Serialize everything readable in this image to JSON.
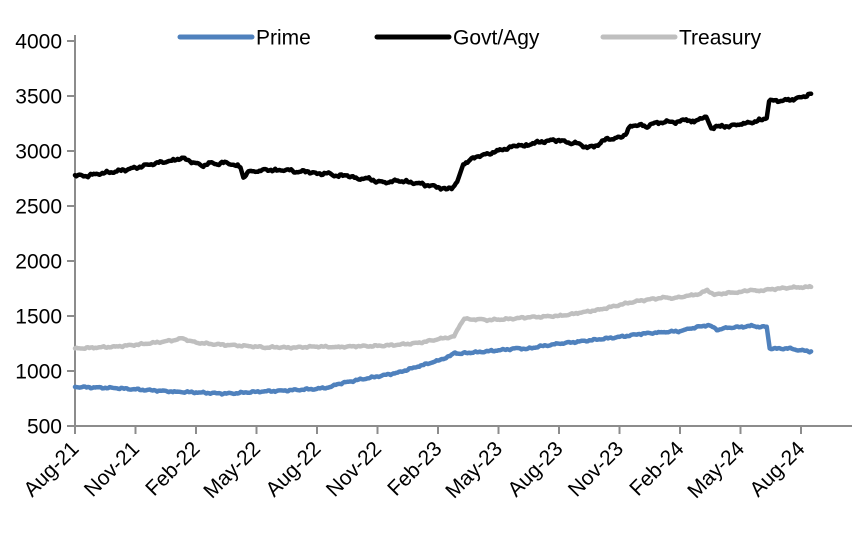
{
  "chart_data": {
    "type": "line",
    "title": "",
    "xlabel": "",
    "ylabel": "",
    "grid": false,
    "legend_position": "top",
    "x_unit": "months since Aug-2021",
    "x_range_months": [
      0,
      36.5
    ],
    "ylim": [
      500,
      4000
    ],
    "y_ticks": [
      4000,
      3500,
      3000,
      2500,
      2000,
      1500,
      1000,
      500
    ],
    "x_tick_labels": [
      "Aug-21",
      "Nov-21",
      "Feb-22",
      "May-22",
      "Aug-22",
      "Nov-22",
      "Feb-23",
      "May-23",
      "Aug-23",
      "Nov-23",
      "Feb-24",
      "May-24",
      "Aug-24"
    ],
    "axis_color": "#8c8c8c",
    "series": [
      {
        "name": "Prime",
        "color": "#4f81bd",
        "points": [
          [
            0,
            855
          ],
          [
            1,
            850
          ],
          [
            2,
            845
          ],
          [
            3,
            833
          ],
          [
            4,
            822
          ],
          [
            5,
            812
          ],
          [
            6,
            805
          ],
          [
            7,
            798
          ],
          [
            7.5,
            795
          ],
          [
            8,
            798
          ],
          [
            8.5,
            805
          ],
          [
            9,
            812
          ],
          [
            9.5,
            816
          ],
          [
            10,
            818
          ],
          [
            11,
            828
          ],
          [
            12,
            838
          ],
          [
            12.7,
            855
          ],
          [
            13,
            880
          ],
          [
            14,
            918
          ],
          [
            15,
            950
          ],
          [
            16,
            985
          ],
          [
            17,
            1040
          ],
          [
            18,
            1095
          ],
          [
            18.6,
            1135
          ],
          [
            18.85,
            1168
          ],
          [
            19.1,
            1155
          ],
          [
            19.4,
            1165
          ],
          [
            20,
            1172
          ],
          [
            21,
            1188
          ],
          [
            22,
            1208
          ],
          [
            22.4,
            1200
          ],
          [
            23,
            1222
          ],
          [
            24,
            1248
          ],
          [
            25,
            1268
          ],
          [
            26,
            1288
          ],
          [
            27,
            1310
          ],
          [
            28,
            1336
          ],
          [
            29,
            1352
          ],
          [
            30,
            1362
          ],
          [
            30.5,
            1385
          ],
          [
            31,
            1405
          ],
          [
            31.4,
            1418
          ],
          [
            31.9,
            1372
          ],
          [
            32.2,
            1392
          ],
          [
            33,
            1400
          ],
          [
            33.6,
            1412
          ],
          [
            34,
            1398
          ],
          [
            34.3,
            1403
          ],
          [
            34.45,
            1205
          ],
          [
            35,
            1202
          ],
          [
            35.4,
            1208
          ],
          [
            35.7,
            1195
          ],
          [
            36,
            1188
          ],
          [
            36.5,
            1178
          ]
        ]
      },
      {
        "name": "Govt/Agy",
        "color": "#000000",
        "points": [
          [
            0,
            2780
          ],
          [
            0.5,
            2772
          ],
          [
            1,
            2790
          ],
          [
            2,
            2812
          ],
          [
            3,
            2848
          ],
          [
            4,
            2890
          ],
          [
            4.8,
            2912
          ],
          [
            5.3,
            2938
          ],
          [
            5.7,
            2905
          ],
          [
            6,
            2890
          ],
          [
            6.3,
            2862
          ],
          [
            6.7,
            2895
          ],
          [
            7,
            2880
          ],
          [
            7.5,
            2898
          ],
          [
            8,
            2865
          ],
          [
            8.2,
            2852
          ],
          [
            8.35,
            2758
          ],
          [
            8.6,
            2815
          ],
          [
            9,
            2812
          ],
          [
            9.5,
            2832
          ],
          [
            10,
            2822
          ],
          [
            10.5,
            2832
          ],
          [
            11,
            2808
          ],
          [
            11.5,
            2816
          ],
          [
            12,
            2792
          ],
          [
            12.5,
            2798
          ],
          [
            13,
            2772
          ],
          [
            13.5,
            2778
          ],
          [
            14,
            2748
          ],
          [
            14.5,
            2753
          ],
          [
            15,
            2722
          ],
          [
            15.5,
            2712
          ],
          [
            16,
            2732
          ],
          [
            16.5,
            2718
          ],
          [
            17,
            2708
          ],
          [
            17.5,
            2688
          ],
          [
            18,
            2672
          ],
          [
            18.4,
            2652
          ],
          [
            18.75,
            2672
          ],
          [
            18.95,
            2720
          ],
          [
            19.25,
            2878
          ],
          [
            19.6,
            2922
          ],
          [
            20,
            2952
          ],
          [
            20.5,
            2975
          ],
          [
            21,
            3005
          ],
          [
            21.5,
            3028
          ],
          [
            22,
            3055
          ],
          [
            22.3,
            3042
          ],
          [
            22.7,
            3072
          ],
          [
            23,
            3078
          ],
          [
            23.5,
            3095
          ],
          [
            24,
            3100
          ],
          [
            24.4,
            3076
          ],
          [
            25,
            3068
          ],
          [
            25.4,
            3028
          ],
          [
            25.8,
            3048
          ],
          [
            26,
            3062
          ],
          [
            26.4,
            3118
          ],
          [
            26.7,
            3105
          ],
          [
            27,
            3128
          ],
          [
            27.3,
            3148
          ],
          [
            27.55,
            3228
          ],
          [
            27.8,
            3232
          ],
          [
            28,
            3242
          ],
          [
            28.3,
            3218
          ],
          [
            28.6,
            3248
          ],
          [
            29,
            3255
          ],
          [
            29.4,
            3272
          ],
          [
            29.7,
            3258
          ],
          [
            30,
            3268
          ],
          [
            30.3,
            3288
          ],
          [
            30.7,
            3262
          ],
          [
            31,
            3298
          ],
          [
            31.3,
            3312
          ],
          [
            31.55,
            3205
          ],
          [
            31.8,
            3228
          ],
          [
            32,
            3222
          ],
          [
            32.5,
            3228
          ],
          [
            33,
            3242
          ],
          [
            33.5,
            3258
          ],
          [
            34,
            3282
          ],
          [
            34.3,
            3298
          ],
          [
            34.42,
            3452
          ],
          [
            34.7,
            3462
          ],
          [
            35,
            3455
          ],
          [
            35.3,
            3465
          ],
          [
            35.7,
            3472
          ],
          [
            36,
            3488
          ],
          [
            36.5,
            3520
          ]
        ]
      },
      {
        "name": "Treasury",
        "color": "#bfbfbf",
        "points": [
          [
            0,
            1205
          ],
          [
            1,
            1212
          ],
          [
            2,
            1222
          ],
          [
            3,
            1238
          ],
          [
            4,
            1258
          ],
          [
            5,
            1282
          ],
          [
            5.3,
            1298
          ],
          [
            5.7,
            1275
          ],
          [
            6,
            1258
          ],
          [
            7,
            1242
          ],
          [
            8,
            1232
          ],
          [
            9,
            1222
          ],
          [
            9.5,
            1212
          ],
          [
            10,
            1218
          ],
          [
            10.5,
            1212
          ],
          [
            11,
            1215
          ],
          [
            12,
            1222
          ],
          [
            13,
            1218
          ],
          [
            14,
            1225
          ],
          [
            15,
            1228
          ],
          [
            16,
            1238
          ],
          [
            17,
            1255
          ],
          [
            18,
            1288
          ],
          [
            18.8,
            1315
          ],
          [
            19.1,
            1420
          ],
          [
            19.3,
            1475
          ],
          [
            19.6,
            1468
          ],
          [
            20,
            1472
          ],
          [
            20.5,
            1462
          ],
          [
            21,
            1468
          ],
          [
            21.5,
            1472
          ],
          [
            22,
            1482
          ],
          [
            22.5,
            1488
          ],
          [
            23,
            1492
          ],
          [
            24,
            1502
          ],
          [
            24.5,
            1512
          ],
          [
            25,
            1528
          ],
          [
            26,
            1558
          ],
          [
            27,
            1600
          ],
          [
            27.5,
            1622
          ],
          [
            28,
            1638
          ],
          [
            28.5,
            1652
          ],
          [
            29,
            1662
          ],
          [
            29.3,
            1668
          ],
          [
            29.7,
            1662
          ],
          [
            30,
            1672
          ],
          [
            30.5,
            1688
          ],
          [
            31,
            1702
          ],
          [
            31.35,
            1738
          ],
          [
            31.7,
            1692
          ],
          [
            32,
            1702
          ],
          [
            32.5,
            1712
          ],
          [
            33,
            1718
          ],
          [
            33.5,
            1738
          ],
          [
            33.8,
            1728
          ],
          [
            34,
            1732
          ],
          [
            34.5,
            1742
          ],
          [
            35,
            1752
          ],
          [
            35.5,
            1758
          ],
          [
            36,
            1760
          ],
          [
            36.5,
            1765
          ]
        ]
      }
    ]
  }
}
